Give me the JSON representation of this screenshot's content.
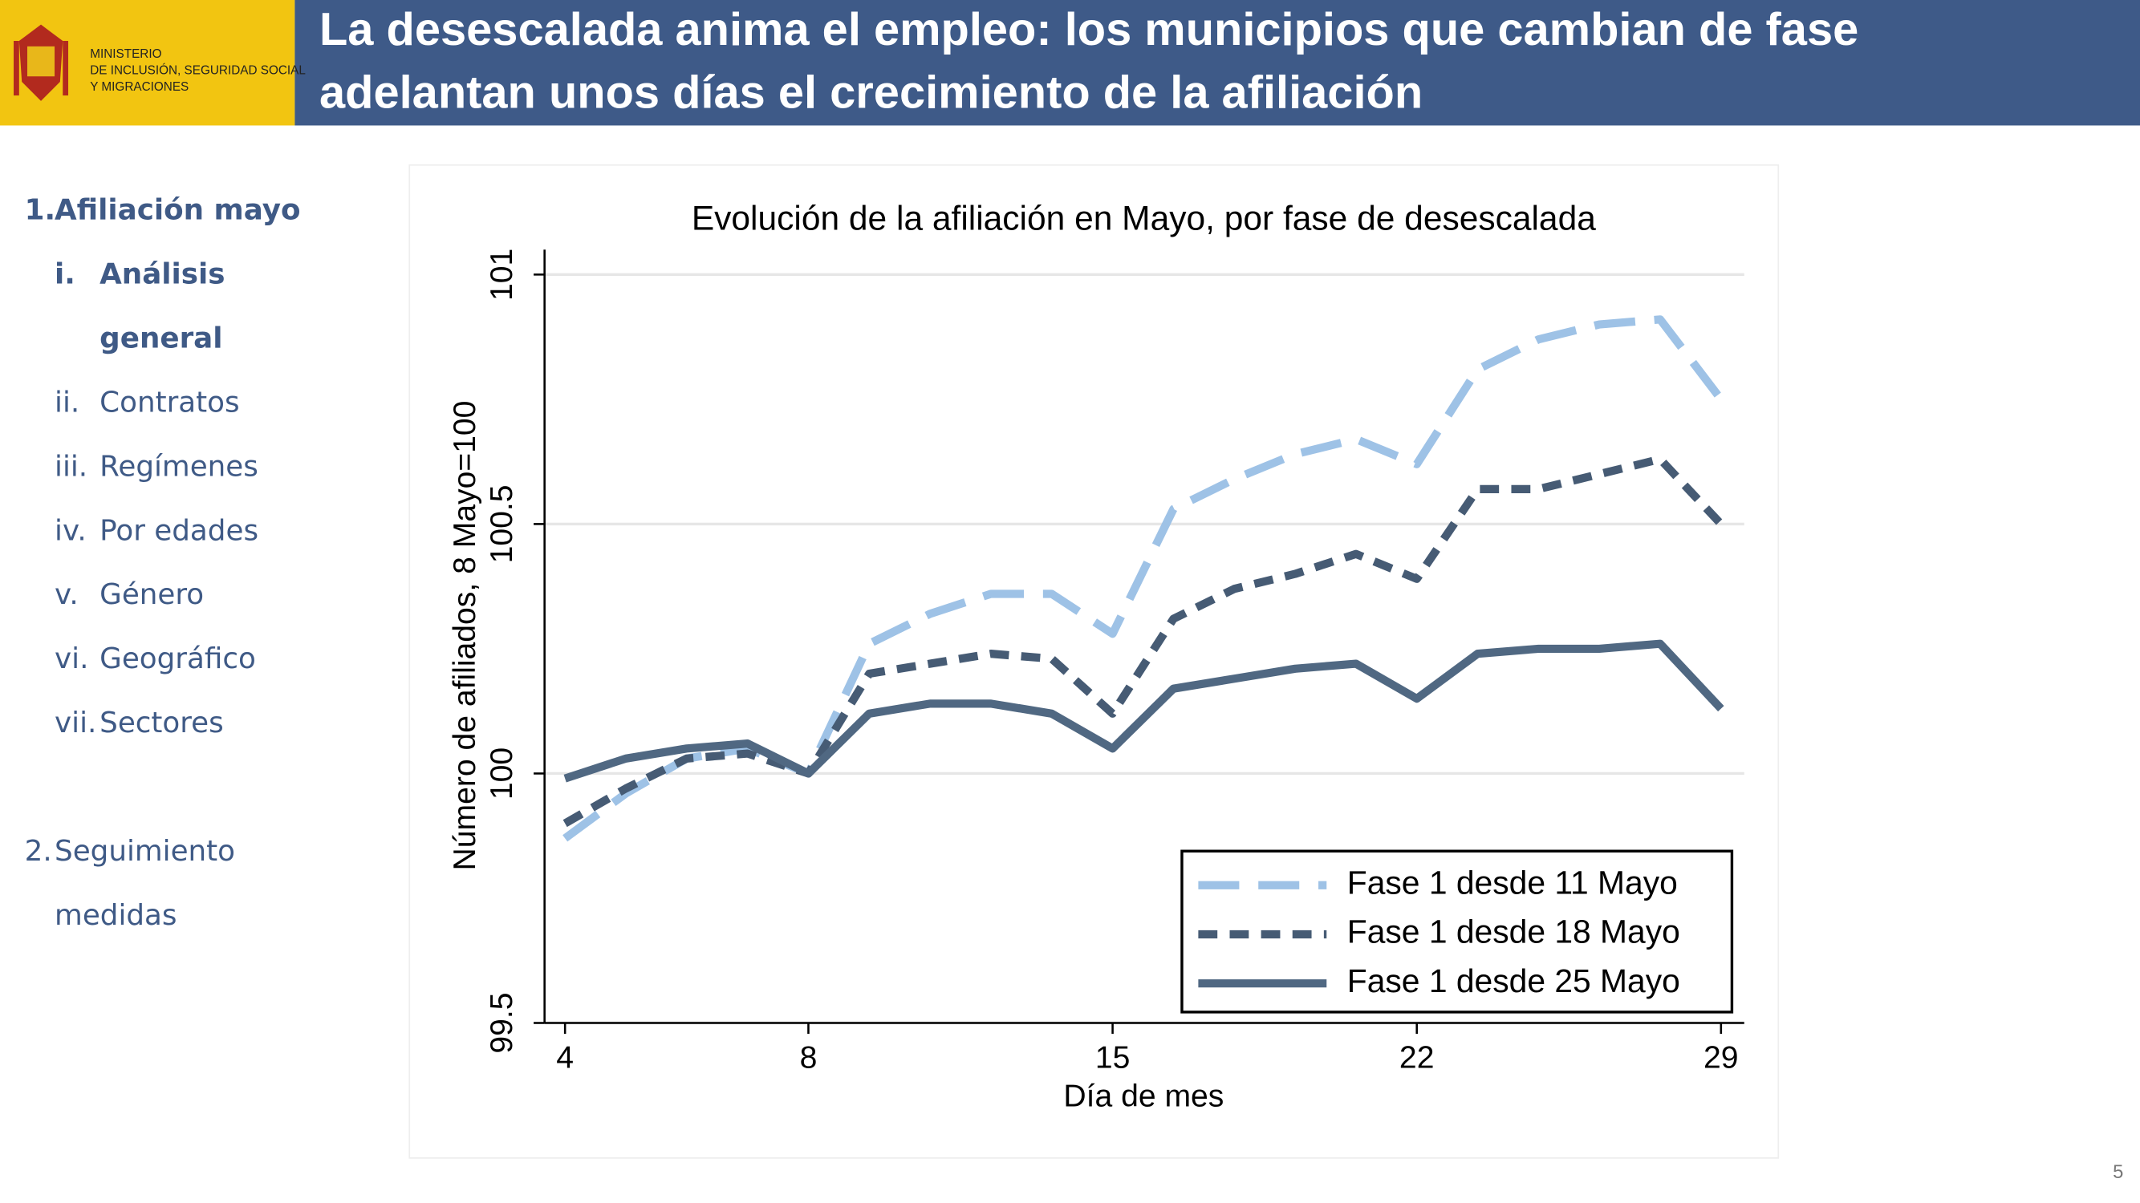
{
  "header": {
    "logo_lines": [
      "MINISTERIO",
      "DE INCLUSIÓN, SEGURIDAD SOCIAL",
      "Y MIGRACIONES"
    ],
    "title_lines": [
      "La desescalada anima el empleo: los municipios que cambian de fase",
      "adelantan unos días el crecimiento de la afiliación"
    ]
  },
  "sidebar": {
    "items": [
      {
        "number": "1.",
        "label_lines": [
          "Afiliación mayo"
        ],
        "level": 1,
        "bold": true
      },
      {
        "number": "i.",
        "label_lines": [
          "Análisis",
          "general"
        ],
        "level": 2,
        "bold": true
      },
      {
        "number": "ii.",
        "label_lines": [
          "Contratos"
        ],
        "level": 2,
        "bold": false
      },
      {
        "number": "iii.",
        "label_lines": [
          "Regímenes"
        ],
        "level": 2,
        "bold": false
      },
      {
        "number": "iv.",
        "label_lines": [
          "Por edades"
        ],
        "level": 2,
        "bold": false
      },
      {
        "number": "v.",
        "label_lines": [
          "Género"
        ],
        "level": 2,
        "bold": false
      },
      {
        "number": "vi.",
        "label_lines": [
          "Geográfico"
        ],
        "level": 2,
        "bold": false
      },
      {
        "number": "vii.",
        "label_lines": [
          "Sectores"
        ],
        "level": 2,
        "bold": false
      },
      {
        "number": "2.",
        "label_lines": [
          "Seguimiento",
          "medidas"
        ],
        "level": 1,
        "bold": false
      }
    ]
  },
  "page_number": "5",
  "chart_data": {
    "type": "line",
    "title": "Evolución de la afiliación en Mayo, por fase de desescalada",
    "x_label": "Día de mes",
    "y_label": "Número de afiliados, 8 Mayo=100",
    "categories": [
      "4",
      null,
      null,
      null,
      "8",
      null,
      null,
      null,
      null,
      "15",
      null,
      null,
      null,
      null,
      "22",
      null,
      null,
      null,
      null,
      "29"
    ],
    "ylim": [
      99.5,
      101.05
    ],
    "yticks": [
      99.5,
      100,
      100.5,
      101
    ],
    "grid": true,
    "legend": "lower right",
    "series": [
      {
        "name": "Fase 1 desde 11 Mayo",
        "color": "#9ec2e6",
        "line_style": "long-dash",
        "values": [
          99.87,
          99.96,
          100.03,
          100.05,
          100,
          100.26,
          100.32,
          100.36,
          100.36,
          100.28,
          100.53,
          100.59,
          100.64,
          100.67,
          100.62,
          100.81,
          100.87,
          100.9,
          100.91,
          100.75
        ]
      },
      {
        "name": "Fase 1 desde 18 Mayo",
        "color": "#465b74",
        "line_style": "short-dash",
        "values": [
          99.9,
          99.97,
          100.03,
          100.04,
          100,
          100.2,
          100.22,
          100.24,
          100.23,
          100.12,
          100.31,
          100.37,
          100.4,
          100.44,
          100.39,
          100.57,
          100.57,
          100.6,
          100.63,
          100.5
        ]
      },
      {
        "name": "Fase 1 desde 25 Mayo",
        "color": "#506882",
        "line_style": "solid",
        "values": [
          99.99,
          100.03,
          100.05,
          100.06,
          100,
          100.12,
          100.14,
          100.14,
          100.12,
          100.05,
          100.17,
          100.19,
          100.21,
          100.22,
          100.15,
          100.24,
          100.25,
          100.25,
          100.26,
          100.13
        ]
      }
    ]
  }
}
